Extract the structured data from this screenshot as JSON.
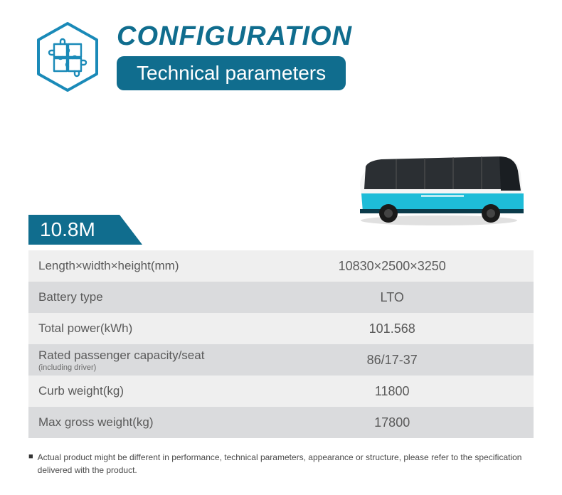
{
  "header": {
    "title": "CONFIGURATION",
    "subtitle": "Technical parameters",
    "title_color": "#106d8e",
    "pill_bg": "#106d8e",
    "pill_text_color": "#ffffff"
  },
  "icon": {
    "stroke": "#1a8ab8",
    "name": "puzzle-hexagon"
  },
  "bus": {
    "body_color": "#1ebcd8",
    "window_color": "#2b2f33",
    "roof_color": "#e8e8e8",
    "wheel_color": "#1a1a1a"
  },
  "size_tag": {
    "label": "10.8M",
    "bg": "#106d8e"
  },
  "table": {
    "row_odd_bg": "#efefef",
    "row_even_bg": "#dadbdd",
    "text_color": "#5a5a5a",
    "label_fontsize": 17,
    "value_fontsize": 18,
    "rows": [
      {
        "label": "Length×width×height(mm)",
        "sublabel": "",
        "value": "10830×2500×3250"
      },
      {
        "label": "Battery type",
        "sublabel": "",
        "value": "LTO"
      },
      {
        "label": "Total power(kWh)",
        "sublabel": "",
        "value": "101.568"
      },
      {
        "label": "Rated passenger capacity/seat",
        "sublabel": "(including driver)",
        "value": "86/17-37"
      },
      {
        "label": "Curb weight(kg)",
        "sublabel": "",
        "value": "11800"
      },
      {
        "label": "Max gross weight(kg)",
        "sublabel": "",
        "value": "17800"
      }
    ]
  },
  "footnote": {
    "bullet": "■",
    "text": "Actual product might be different in performance, technical parameters, appearance or structure, please refer to the specification delivered with the product."
  }
}
